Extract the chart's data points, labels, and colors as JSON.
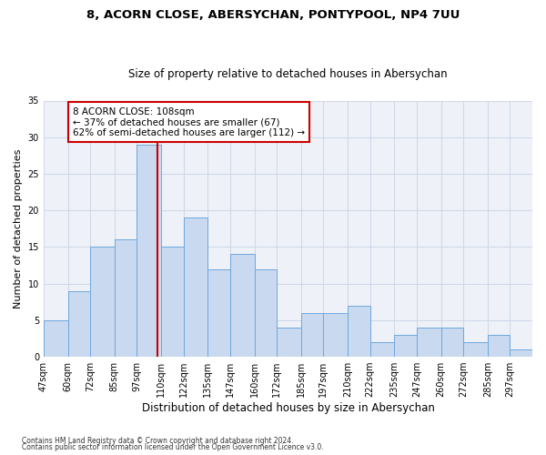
{
  "title1": "8, ACORN CLOSE, ABERSYCHAN, PONTYPOOL, NP4 7UU",
  "title2": "Size of property relative to detached houses in Abersychan",
  "xlabel": "Distribution of detached houses by size in Abersychan",
  "ylabel": "Number of detached properties",
  "bin_labels": [
    "47sqm",
    "60sqm",
    "72sqm",
    "85sqm",
    "97sqm",
    "110sqm",
    "122sqm",
    "135sqm",
    "147sqm",
    "160sqm",
    "172sqm",
    "185sqm",
    "197sqm",
    "210sqm",
    "222sqm",
    "235sqm",
    "247sqm",
    "260sqm",
    "272sqm",
    "285sqm",
    "297sqm"
  ],
  "bin_edges": [
    47,
    60,
    72,
    85,
    97,
    110,
    122,
    135,
    147,
    160,
    172,
    185,
    197,
    210,
    222,
    235,
    247,
    260,
    272,
    285,
    297
  ],
  "bar_heights": [
    5,
    9,
    15,
    16,
    29,
    15,
    19,
    12,
    14,
    12,
    4,
    6,
    6,
    7,
    2,
    3,
    4,
    4,
    2,
    3,
    1
  ],
  "bar_color": "#c9d9f0",
  "bar_edge_color": "#6fa8dc",
  "property_size": 108,
  "property_line_color": "#cc0000",
  "annotation_line1": "8 ACORN CLOSE: 108sqm",
  "annotation_line2": "← 37% of detached houses are smaller (67)",
  "annotation_line3": "62% of semi-detached houses are larger (112) →",
  "annotation_box_color": "#ffffff",
  "annotation_box_edge": "#cc0000",
  "grid_color": "#d0d8e8",
  "bg_color": "#eef2f8",
  "footer1": "Contains HM Land Registry data © Crown copyright and database right 2024.",
  "footer2": "Contains public sector information licensed under the Open Government Licence v3.0.",
  "ylim": [
    0,
    35
  ],
  "yticks": [
    0,
    5,
    10,
    15,
    20,
    25,
    30,
    35
  ]
}
